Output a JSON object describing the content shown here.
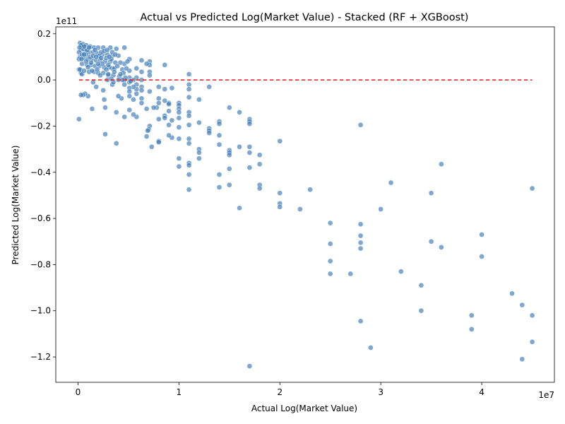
{
  "chart_data": {
    "type": "scatter",
    "title": "Actual vs Predicted Log(Market Value) - Stacked (RF + XGBoost)",
    "xlabel": "Actual Log(Market Value)",
    "ylabel": "Predicted Log(Market Value)",
    "x_offset_text": "1e7",
    "y_offset_text": "1e11",
    "xlim": [
      -2.2,
      47.2
    ],
    "ylim": [
      -1.31,
      0.23
    ],
    "x_ticks": [
      0,
      1,
      2,
      3,
      4
    ],
    "x_tick_labels": [
      "0",
      "1",
      "2",
      "3",
      "4"
    ],
    "y_ticks": [
      0.2,
      0.0,
      -0.2,
      -0.4,
      -0.6,
      -0.8,
      -1.0,
      -1.2
    ],
    "y_tick_labels": [
      "0.2",
      "0.0",
      "−0.2",
      "−0.4",
      "−0.6",
      "−0.8",
      "−1.0",
      "−1.2"
    ],
    "x_unit": 10,
    "reference_line": {
      "y": 0,
      "color": "#e41a1c",
      "style": "dashed"
    },
    "grid": false,
    "point_color": "#3a7ab7",
    "points": [
      [
        45,
        -0.47
      ],
      [
        45,
        -1.02
      ],
      [
        45,
        -1.135
      ],
      [
        44,
        -1.21
      ],
      [
        44,
        -0.975
      ],
      [
        43,
        -0.925
      ],
      [
        40,
        -0.67
      ],
      [
        40,
        -0.765
      ],
      [
        39,
        -1.02
      ],
      [
        39,
        -1.08
      ],
      [
        36,
        -0.365
      ],
      [
        36,
        -0.725
      ],
      [
        35,
        -0.49
      ],
      [
        35,
        -0.7
      ],
      [
        34,
        -0.89
      ],
      [
        34,
        -1.0
      ],
      [
        32,
        -0.83
      ],
      [
        31,
        -0.445
      ],
      [
        30,
        -0.56
      ],
      [
        29,
        -1.16
      ],
      [
        28,
        -0.195
      ],
      [
        28,
        -0.625
      ],
      [
        28,
        -0.675
      ],
      [
        28,
        -0.705
      ],
      [
        28,
        -0.73
      ],
      [
        28,
        -1.045
      ],
      [
        27,
        -0.84
      ],
      [
        25,
        -0.62
      ],
      [
        25,
        -0.71
      ],
      [
        25,
        -0.785
      ],
      [
        25,
        -0.84
      ],
      [
        23,
        -0.475
      ],
      [
        22,
        -0.56
      ],
      [
        20,
        -0.265
      ],
      [
        20,
        -0.49
      ],
      [
        20,
        -0.535
      ],
      [
        20,
        -0.55
      ],
      [
        18,
        -0.325
      ],
      [
        18,
        -0.365
      ],
      [
        18,
        -0.455
      ],
      [
        18,
        -0.47
      ],
      [
        17,
        -0.17
      ],
      [
        17,
        -0.18
      ],
      [
        17,
        -0.19
      ],
      [
        17,
        -0.29
      ],
      [
        17,
        -0.315
      ],
      [
        17,
        -0.38
      ],
      [
        17,
        -1.24
      ],
      [
        16,
        -0.14
      ],
      [
        16,
        -0.29
      ],
      [
        16,
        -0.555
      ],
      [
        15,
        -0.12
      ],
      [
        15,
        -0.305
      ],
      [
        15,
        -0.315
      ],
      [
        15,
        -0.325
      ],
      [
        15,
        -0.385
      ],
      [
        15,
        -0.455
      ],
      [
        14,
        -0.18
      ],
      [
        14,
        -0.19
      ],
      [
        14,
        -0.24
      ],
      [
        14,
        -0.28
      ],
      [
        14,
        -0.41
      ],
      [
        14,
        -0.465
      ],
      [
        13,
        -0.03
      ],
      [
        13,
        -0.21
      ],
      [
        13,
        -0.22
      ],
      [
        13,
        -0.23
      ],
      [
        12,
        -0.085
      ],
      [
        12,
        -0.185
      ],
      [
        12,
        -0.3
      ],
      [
        12,
        -0.315
      ],
      [
        12,
        -0.34
      ],
      [
        11,
        0.025
      ],
      [
        11,
        -0.02
      ],
      [
        11,
        -0.04
      ],
      [
        11,
        -0.075
      ],
      [
        11,
        -0.14
      ],
      [
        11,
        -0.155
      ],
      [
        11,
        -0.195
      ],
      [
        11,
        -0.255
      ],
      [
        11,
        -0.275
      ],
      [
        11,
        -0.36
      ],
      [
        11,
        -0.37
      ],
      [
        11,
        -0.41
      ],
      [
        11,
        -0.475
      ],
      [
        10,
        -0.1
      ],
      [
        10,
        -0.11
      ],
      [
        10,
        -0.125
      ],
      [
        10,
        -0.14
      ],
      [
        10,
        -0.165
      ],
      [
        10,
        -0.205
      ],
      [
        10,
        -0.255
      ],
      [
        10,
        -0.34
      ],
      [
        10,
        -0.375
      ],
      [
        9.3,
        -0.035
      ],
      [
        9.3,
        -0.175
      ],
      [
        9.3,
        -0.25
      ],
      [
        9,
        -0.1
      ],
      [
        9,
        -0.105
      ],
      [
        9,
        -0.135
      ],
      [
        9,
        -0.195
      ],
      [
        9,
        -0.24
      ],
      [
        8.6,
        0.065
      ],
      [
        8.6,
        -0.04
      ],
      [
        8.6,
        -0.09
      ],
      [
        8.6,
        -0.155
      ],
      [
        8.6,
        -0.165
      ],
      [
        8,
        -0.03
      ],
      [
        8,
        -0.08
      ],
      [
        8,
        -0.1
      ],
      [
        8,
        -0.17
      ],
      [
        8,
        -0.265
      ],
      [
        8,
        -0.27
      ],
      [
        7.8,
        -0.12
      ],
      [
        7.5,
        -0.12
      ],
      [
        7.3,
        -0.29
      ],
      [
        7.1,
        0.08
      ],
      [
        7.1,
        0.065
      ],
      [
        7.1,
        0.035
      ],
      [
        7.1,
        0.02
      ],
      [
        7.1,
        -0.05
      ],
      [
        7.1,
        -0.2
      ],
      [
        7,
        -0.215
      ],
      [
        6.9,
        -0.22
      ],
      [
        6.8,
        0.07
      ],
      [
        6.8,
        -0.125
      ],
      [
        6.8,
        -0.245
      ],
      [
        6.3,
        0.085
      ],
      [
        6.3,
        0.035
      ],
      [
        6.3,
        0.0
      ],
      [
        6.3,
        -0.03
      ],
      [
        6.3,
        -0.045
      ],
      [
        6.3,
        -0.08
      ],
      [
        6.3,
        -0.1
      ],
      [
        5.8,
        0.05
      ],
      [
        5.8,
        0.01
      ],
      [
        5.8,
        -0.02
      ],
      [
        5.8,
        -0.04
      ],
      [
        5.8,
        -0.06
      ],
      [
        5.8,
        -0.16
      ],
      [
        5.5,
        -0.03
      ],
      [
        5.5,
        -0.085
      ],
      [
        5.5,
        -0.15
      ],
      [
        5.1,
        0.09
      ],
      [
        5.1,
        0.04
      ],
      [
        5.1,
        0.01
      ],
      [
        5.1,
        -0.01
      ],
      [
        5.1,
        -0.035
      ],
      [
        5.1,
        -0.05
      ],
      [
        5.1,
        -0.07
      ],
      [
        5.1,
        -0.13
      ],
      [
        4.6,
        0.14
      ],
      [
        4.6,
        0.07
      ],
      [
        4.6,
        0.0
      ],
      [
        4.6,
        -0.02
      ],
      [
        4.6,
        -0.16
      ],
      [
        4.3,
        -0.08
      ],
      [
        4,
        -0.07
      ],
      [
        3.8,
        -0.14
      ],
      [
        3.8,
        -0.275
      ],
      [
        3.4,
        0.05
      ],
      [
        3.4,
        -0.02
      ],
      [
        3,
        0.02
      ],
      [
        2.7,
        -0.12
      ],
      [
        2.6,
        -0.085
      ],
      [
        2.5,
        -0.045
      ],
      [
        2.7,
        -0.235
      ],
      [
        1.8,
        -0.03
      ],
      [
        1.5,
        -0.01
      ],
      [
        1.4,
        -0.125
      ],
      [
        1.0,
        -0.07
      ],
      [
        0.7,
        -0.06
      ],
      [
        0.5,
        -0.065
      ],
      [
        0.3,
        -0.065
      ],
      [
        0.1,
        -0.17
      ],
      [
        0.1,
        0.045
      ],
      [
        0.3,
        0.03
      ],
      [
        0.4,
        0.025
      ],
      [
        0.2,
        0.16
      ],
      [
        0.5,
        0.155
      ],
      [
        0.8,
        0.15
      ],
      [
        1.2,
        0.145
      ],
      [
        1.6,
        0.14
      ],
      [
        2.0,
        0.14
      ],
      [
        2.5,
        0.14
      ],
      [
        3.2,
        0.14
      ],
      [
        3.8,
        0.135
      ],
      [
        0.3,
        0.13
      ],
      [
        0.7,
        0.125
      ],
      [
        1.1,
        0.12
      ],
      [
        1.5,
        0.12
      ],
      [
        1.9,
        0.115
      ],
      [
        2.4,
        0.11
      ],
      [
        2.9,
        0.11
      ],
      [
        3.4,
        0.105
      ],
      [
        4.0,
        0.105
      ],
      [
        0.2,
        0.1
      ],
      [
        0.6,
        0.095
      ],
      [
        1.0,
        0.09
      ],
      [
        1.4,
        0.09
      ],
      [
        1.8,
        0.085
      ],
      [
        2.2,
        0.085
      ],
      [
        2.7,
        0.08
      ],
      [
        3.2,
        0.08
      ],
      [
        3.7,
        0.075
      ],
      [
        4.2,
        0.075
      ],
      [
        0.4,
        0.07
      ],
      [
        0.9,
        0.065
      ],
      [
        1.3,
        0.065
      ],
      [
        1.7,
        0.06
      ],
      [
        2.1,
        0.06
      ],
      [
        2.6,
        0.055
      ],
      [
        3.1,
        0.055
      ],
      [
        3.6,
        0.05
      ],
      [
        0.2,
        0.045
      ],
      [
        0.6,
        0.04
      ],
      [
        1.1,
        0.035
      ],
      [
        1.6,
        0.035
      ],
      [
        2.0,
        0.03
      ],
      [
        2.5,
        0.03
      ],
      [
        3.0,
        0.025
      ],
      [
        3.5,
        0.02
      ],
      [
        4.1,
        0.015
      ],
      [
        0.8,
        0.11
      ],
      [
        1.2,
        0.1
      ],
      [
        2.3,
        0.12
      ],
      [
        2.8,
        0.095
      ],
      [
        3.3,
        0.09
      ],
      [
        0.5,
        0.135
      ],
      [
        1.7,
        0.13
      ],
      [
        2.1,
        0.105
      ],
      [
        3.0,
        0.065
      ],
      [
        3.6,
        0.035
      ],
      [
        4.4,
        0.045
      ],
      [
        4.9,
        0.08
      ],
      [
        4.0,
        0.0
      ],
      [
        3.5,
        -0.01
      ],
      [
        2.9,
        0.0
      ],
      [
        0.1,
        0.12
      ],
      [
        0.1,
        0.09
      ],
      [
        0.4,
        0.11
      ],
      [
        1.3,
        0.075
      ],
      [
        1.9,
        0.045
      ],
      [
        2.4,
        0.07
      ],
      [
        3.9,
        0.06
      ],
      [
        4.5,
        0.03
      ],
      [
        0.9,
        0.13
      ],
      [
        1.5,
        0.105
      ],
      [
        2.6,
        0.125
      ],
      [
        3.4,
        0.12
      ],
      [
        0.6,
        0.11
      ],
      [
        1.0,
        0.055
      ],
      [
        1.4,
        0.04
      ],
      [
        2.2,
        0.02
      ],
      [
        2.8,
        0.045
      ],
      [
        4.2,
        0.025
      ],
      [
        0.3,
        0.15
      ],
      [
        0.6,
        0.145
      ],
      [
        1.1,
        0.14
      ],
      [
        0.8,
        0.08
      ],
      [
        1.8,
        0.1
      ],
      [
        2.3,
        0.095
      ],
      [
        3.1,
        0.1
      ],
      [
        3.7,
        0.11
      ],
      [
        2.0,
        0.07
      ],
      [
        2.9,
        0.13
      ],
      [
        0.15,
        0.14
      ],
      [
        0.35,
        0.09
      ],
      [
        4.8,
        0.05
      ],
      [
        5.5,
        0.0
      ],
      [
        5.2,
        -0.005
      ],
      [
        4.7,
        0.01
      ],
      [
        3.3,
        0.005
      ],
      [
        4.4,
        0.0
      ]
    ]
  }
}
